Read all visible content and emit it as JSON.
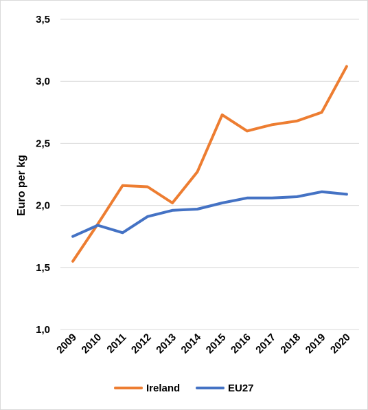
{
  "chart_data": {
    "type": "line",
    "title": "",
    "xlabel": "",
    "ylabel": "Euro per kg",
    "ylim": [
      1.0,
      3.5
    ],
    "yticks": [
      1.0,
      1.5,
      2.0,
      2.5,
      3.0,
      3.5
    ],
    "ytick_labels": [
      "1,0",
      "1,5",
      "2,0",
      "2,5",
      "3,0",
      "3,5"
    ],
    "grid": "horizontal",
    "legend_position": "bottom",
    "x": [
      "2009",
      "2010",
      "2011",
      "2012",
      "2013",
      "2014",
      "2015",
      "2016",
      "2017",
      "2018",
      "2019",
      "2020"
    ],
    "series": [
      {
        "name": "Ireland",
        "color": "#ED7D31",
        "values": [
          1.55,
          1.85,
          2.16,
          2.15,
          2.02,
          2.27,
          2.73,
          2.6,
          2.65,
          2.68,
          2.75,
          3.12
        ]
      },
      {
        "name": "EU27",
        "color": "#4472C4",
        "values": [
          1.75,
          1.84,
          1.78,
          1.91,
          1.96,
          1.97,
          2.02,
          2.06,
          2.06,
          2.07,
          2.11,
          2.09
        ]
      }
    ]
  }
}
